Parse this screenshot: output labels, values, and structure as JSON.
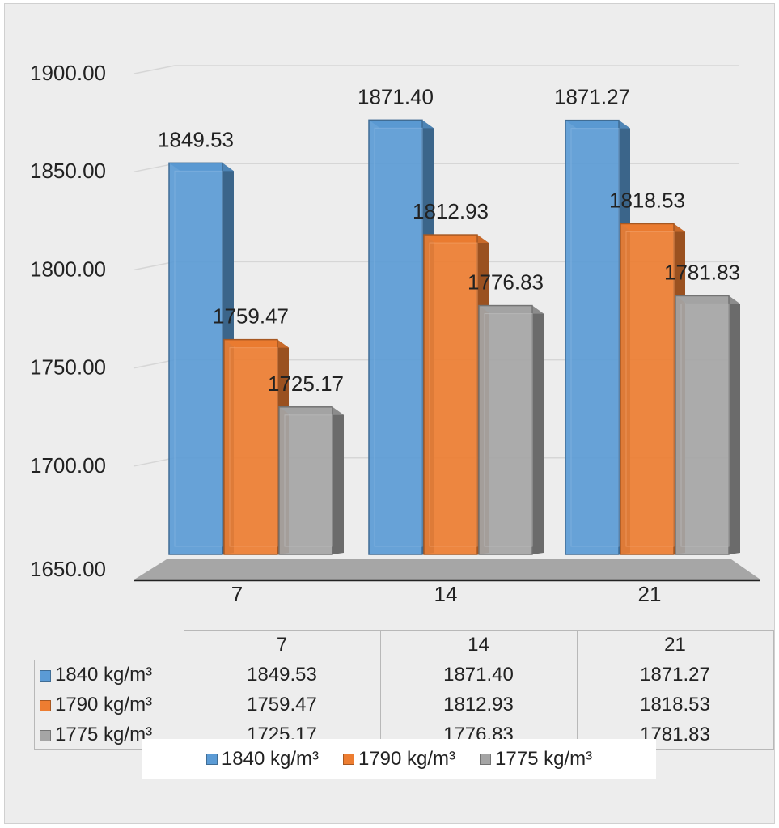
{
  "chart_data": {
    "type": "bar",
    "categories": [
      "7",
      "14",
      "21"
    ],
    "series": [
      {
        "name": "1840 kg/m³",
        "values": [
          1849.53,
          1871.4,
          1871.27
        ],
        "color": "#5b9bd5"
      },
      {
        "name": "1790 kg/m³",
        "values": [
          1759.47,
          1812.93,
          1818.53
        ],
        "color": "#ed7d31"
      },
      {
        "name": "1775 kg/m³",
        "values": [
          1725.17,
          1776.83,
          1781.83
        ],
        "color": "#a5a5a5"
      }
    ],
    "value_labels": [
      [
        "1849.53",
        "1871.40",
        "1871.27"
      ],
      [
        "1759.47",
        "1812.93",
        "1818.53"
      ],
      [
        "1725.17",
        "1776.83",
        "1781.83"
      ]
    ],
    "ylim": [
      1650,
      1900
    ],
    "y_ticks": [
      1650,
      1700,
      1750,
      1800,
      1850,
      1900
    ],
    "y_tick_labels": [
      "1650.00",
      "1700.00",
      "1750.00",
      "1800.00",
      "1850.00",
      "1900.00"
    ],
    "grid": true,
    "legend_position": "bottom",
    "data_table": true
  }
}
